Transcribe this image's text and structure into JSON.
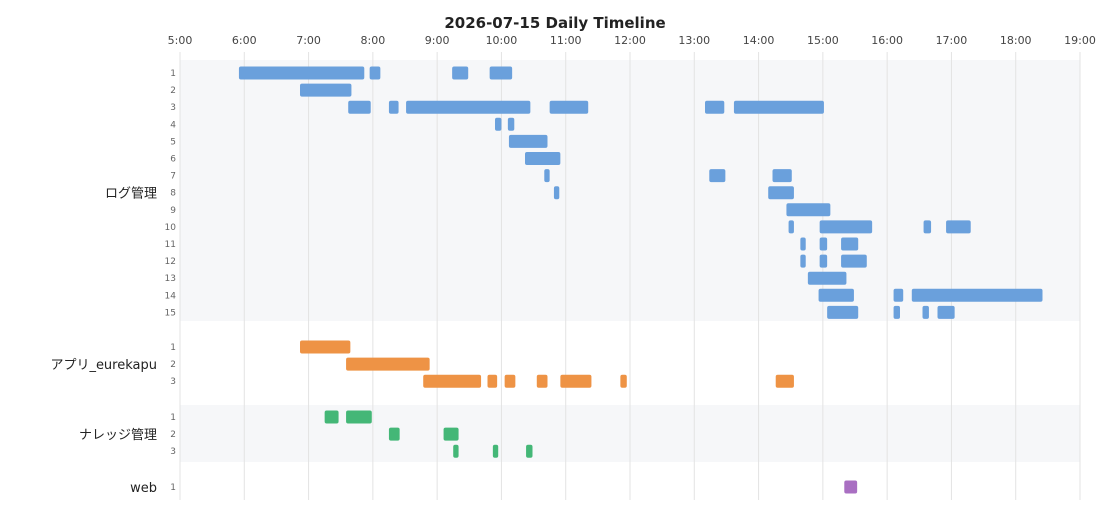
{
  "chart_data": {
    "type": "timeline",
    "title": "2026-07-15 Daily Timeline",
    "x_ticks": [
      "5:00",
      "6:00",
      "7:00",
      "8:00",
      "9:00",
      "10:00",
      "11:00",
      "12:00",
      "13:00",
      "14:00",
      "15:00",
      "16:00",
      "17:00",
      "18:00",
      "19:00"
    ],
    "x_range": [
      "5:00",
      "19:00"
    ],
    "groups": [
      {
        "name": "ログ管理",
        "color": "#6aa0dc",
        "rows": [
          {
            "label": "1",
            "bars": [
              [
                "5:55",
                "7:52"
              ],
              [
                "7:57",
                "8:07"
              ],
              [
                "9:14",
                "9:29"
              ],
              [
                "9:49",
                "10:10"
              ]
            ]
          },
          {
            "label": "2",
            "bars": [
              [
                "6:52",
                "7:40"
              ]
            ]
          },
          {
            "label": "3",
            "bars": [
              [
                "7:37",
                "7:58"
              ],
              [
                "8:15",
                "8:24"
              ],
              [
                "8:31",
                "10:27"
              ],
              [
                "10:45",
                "11:21"
              ],
              [
                "13:10",
                "13:28"
              ],
              [
                "13:37",
                "15:01"
              ]
            ]
          },
          {
            "label": "4",
            "bars": [
              [
                "9:54",
                "10:00"
              ],
              [
                "10:06",
                "10:12"
              ]
            ]
          },
          {
            "label": "5",
            "bars": [
              [
                "10:07",
                "10:43"
              ]
            ]
          },
          {
            "label": "6",
            "bars": [
              [
                "10:22",
                "10:55"
              ]
            ]
          },
          {
            "label": "7",
            "bars": [
              [
                "10:40",
                "10:45"
              ],
              [
                "13:14",
                "13:29"
              ],
              [
                "14:13",
                "14:31"
              ]
            ]
          },
          {
            "label": "8",
            "bars": [
              [
                "10:49",
                "10:54"
              ],
              [
                "14:09",
                "14:33"
              ]
            ]
          },
          {
            "label": "9",
            "bars": [
              [
                "14:26",
                "15:07"
              ]
            ]
          },
          {
            "label": "10",
            "bars": [
              [
                "14:28",
                "14:33"
              ],
              [
                "14:57",
                "15:46"
              ],
              [
                "16:34",
                "16:41"
              ],
              [
                "16:55",
                "17:18"
              ]
            ]
          },
          {
            "label": "11",
            "bars": [
              [
                "14:39",
                "14:44"
              ],
              [
                "14:57",
                "15:04"
              ],
              [
                "15:17",
                "15:33"
              ]
            ]
          },
          {
            "label": "12",
            "bars": [
              [
                "14:39",
                "14:44"
              ],
              [
                "14:57",
                "15:04"
              ],
              [
                "15:17",
                "15:41"
              ]
            ]
          },
          {
            "label": "13",
            "bars": [
              [
                "14:46",
                "15:22"
              ]
            ]
          },
          {
            "label": "14",
            "bars": [
              [
                "14:56",
                "15:29"
              ],
              [
                "16:06",
                "16:15"
              ],
              [
                "16:23",
                "18:25"
              ]
            ]
          },
          {
            "label": "15",
            "bars": [
              [
                "15:04",
                "15:33"
              ],
              [
                "16:06",
                "16:12"
              ],
              [
                "16:33",
                "16:39"
              ],
              [
                "16:47",
                "17:03"
              ]
            ]
          }
        ]
      },
      {
        "name": "アプリ_eurekapu",
        "color": "#ee9345",
        "rows": [
          {
            "label": "1",
            "bars": [
              [
                "6:52",
                "7:39"
              ]
            ]
          },
          {
            "label": "2",
            "bars": [
              [
                "7:35",
                "8:53"
              ]
            ]
          },
          {
            "label": "3",
            "bars": [
              [
                "8:47",
                "9:41"
              ],
              [
                "9:47",
                "9:56"
              ],
              [
                "10:03",
                "10:13"
              ],
              [
                "10:33",
                "10:43"
              ],
              [
                "10:55",
                "11:24"
              ],
              [
                "11:51",
                "11:57"
              ],
              [
                "14:16",
                "14:33"
              ]
            ]
          }
        ]
      },
      {
        "name": "ナレッジ管理",
        "color": "#44b777",
        "rows": [
          {
            "label": "1",
            "bars": [
              [
                "7:15",
                "7:28"
              ],
              [
                "7:35",
                "7:59"
              ]
            ]
          },
          {
            "label": "2",
            "bars": [
              [
                "8:15",
                "8:25"
              ],
              [
                "9:06",
                "9:20"
              ]
            ]
          },
          {
            "label": "3",
            "bars": [
              [
                "9:15",
                "9:20"
              ],
              [
                "9:52",
                "9:57"
              ],
              [
                "10:23",
                "10:29"
              ]
            ]
          }
        ]
      },
      {
        "name": "web",
        "color": "#a96fc2",
        "rows": [
          {
            "label": "1",
            "bars": [
              [
                "15:20",
                "15:32"
              ]
            ]
          }
        ]
      }
    ],
    "grid": true,
    "group_band_colors": [
      "#f6f7f9",
      "#ffffff"
    ],
    "gridline_color": "#e3e3e3"
  }
}
